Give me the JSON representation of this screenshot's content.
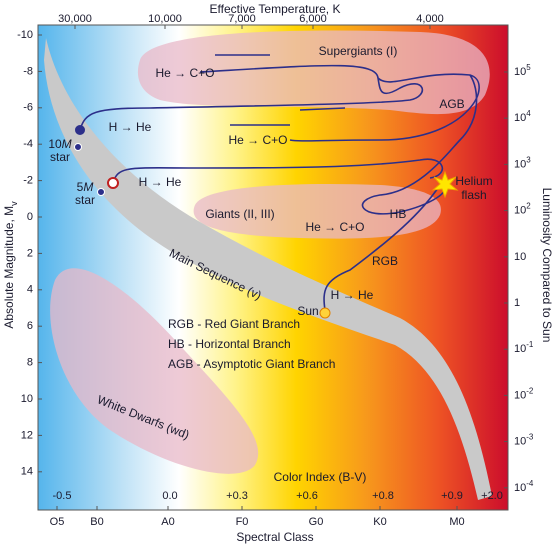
{
  "top_axis": {
    "title": "Effective Temperature, K",
    "ticks": [
      "30,000",
      "10,000",
      "7,000",
      "6,000",
      "4,000"
    ]
  },
  "left_axis": {
    "title": "Absolute Magnitude, M",
    "title_sub": "v",
    "ticks": [
      "-10",
      "-8",
      "-6",
      "-4",
      "-2",
      "0",
      "2",
      "4",
      "6",
      "8",
      "10",
      "12",
      "14"
    ]
  },
  "right_axis": {
    "title": "Luminosity Compared to Sun",
    "ticks": [
      {
        "base": "10",
        "exp": "5"
      },
      {
        "base": "10",
        "exp": "4"
      },
      {
        "base": "10",
        "exp": "3"
      },
      {
        "base": "10",
        "exp": "2"
      },
      {
        "base": "10"
      },
      {
        "base": "1"
      },
      {
        "base": "10",
        "exp": "-1"
      },
      {
        "base": "10",
        "exp": "-2"
      },
      {
        "base": "10",
        "exp": "-3"
      },
      {
        "base": "10",
        "exp": "-4"
      }
    ]
  },
  "bottom_axis": {
    "title": "Spectral Class",
    "ticks": [
      "O5",
      "B0",
      "A0",
      "F0",
      "G0",
      "K0",
      "M0"
    ]
  },
  "color_index": {
    "title": "Color Index (B-V)",
    "ticks": [
      "-0.5",
      "0.0",
      "+0.3",
      "+0.6",
      "+0.8",
      "+0.9",
      "+2.0"
    ]
  },
  "regions": {
    "supergiants": "Supergiants (I)",
    "giants": "Giants (II, III)",
    "main_sequence": "Main Sequence (v)",
    "white_dwarfs": "White Dwarfs (wd)"
  },
  "labels": {
    "he_co_1": "He → C+O",
    "he_co_2": "He → C+O",
    "he_co_3": "He → C+O",
    "h_he_1": "H → He",
    "h_he_2": "H → He",
    "h_he_3": "H → He",
    "agb": "AGB",
    "hb": "HB",
    "rgb": "RGB",
    "helium": "Helium",
    "flash": "flash",
    "sun": "Sun",
    "star10": {
      "num": "10",
      "m": "M",
      "star": "star"
    },
    "star5": {
      "num": "5",
      "m": "M",
      "star": "star"
    }
  },
  "legend": [
    "RGB - Red Giant Branch",
    "HB - Horizontal Branch",
    "AGB - Asymptotic Giant Branch"
  ]
}
